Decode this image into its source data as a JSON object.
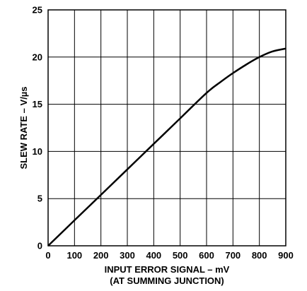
{
  "chart_data": {
    "type": "line",
    "xlabel": "INPUT ERROR SIGNAL – mV",
    "xlabel_line2": "(AT SUMMING JUNCTION)",
    "ylabel": "SLEW RATE – V/µs",
    "xlim": [
      0,
      900
    ],
    "ylim": [
      0,
      25
    ],
    "x_ticks": [
      "0",
      "100",
      "200",
      "300",
      "400",
      "500",
      "600",
      "700",
      "800",
      "900"
    ],
    "y_ticks": [
      "0",
      "5",
      "10",
      "15",
      "20",
      "25"
    ],
    "grid": true,
    "series": [
      {
        "x": [
          0,
          100,
          200,
          300,
          400,
          500,
          600,
          650,
          700,
          750,
          800,
          850,
          900
        ],
        "y": [
          0,
          2.7,
          5.4,
          8.1,
          10.8,
          13.5,
          16.2,
          17.3,
          18.3,
          19.2,
          20.0,
          20.6,
          20.9
        ]
      }
    ]
  }
}
